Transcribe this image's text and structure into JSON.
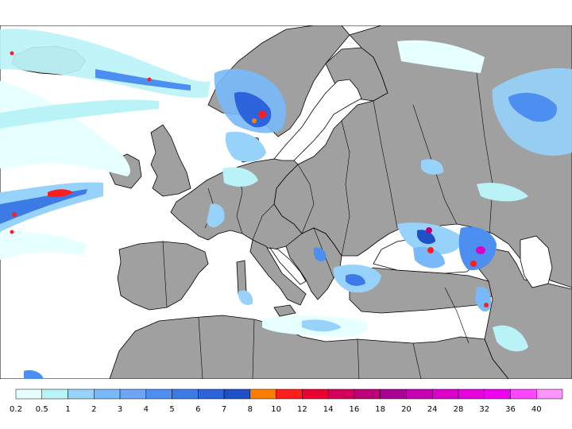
{
  "legend": {
    "labels": [
      "0.2",
      "0.5",
      "1",
      "2",
      "3",
      "4",
      "5",
      "6",
      "7",
      "8",
      "10",
      "12",
      "14",
      "16",
      "18",
      "20",
      "24",
      "28",
      "32",
      "36",
      "40"
    ],
    "colors": [
      "#e6ffff",
      "#b9f3f7",
      "#96d2fa",
      "#78b9fa",
      "#6ea5f5",
      "#4d8ff0",
      "#3c7ae6",
      "#2d64dc",
      "#1e50c8",
      "#ff7d00",
      "#ff1e1e",
      "#eb0032",
      "#d2005a",
      "#be0078",
      "#aa0096",
      "#c800b4",
      "#dc00c8",
      "#e600dc",
      "#f000f0",
      "#ff46ff",
      "#ff96ff"
    ]
  },
  "colors": {
    "land": "#a0a0a0",
    "sea": "#ffffff",
    "border": "#000000"
  }
}
